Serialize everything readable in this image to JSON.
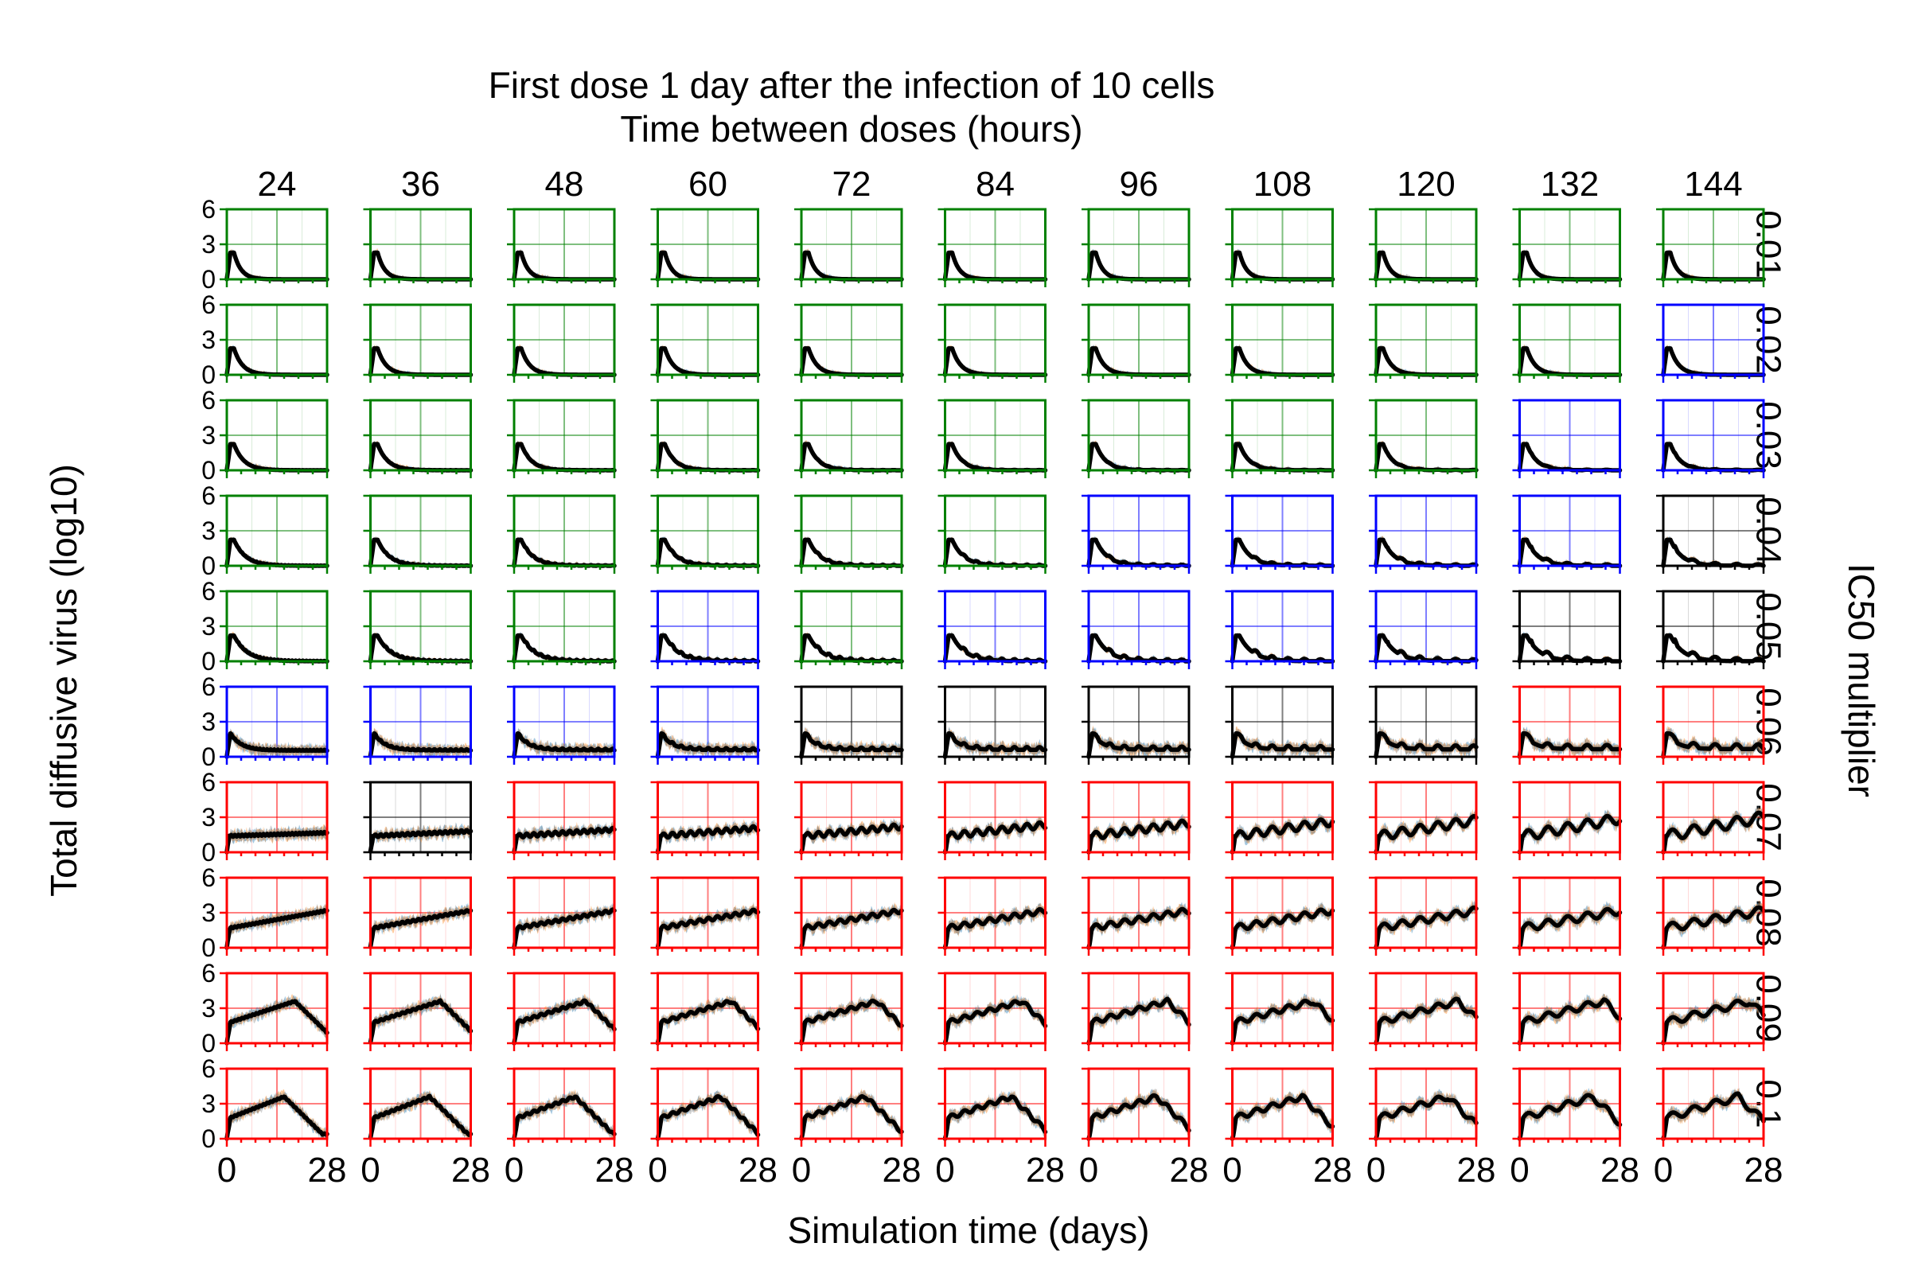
{
  "chart_data": {
    "type": "line",
    "title": "First dose 1 day after the infection of 10 cells",
    "col_header": "Time between doses (hours)",
    "xlabel": "Simulation time (days)",
    "ylabel": "Total diffusive virus (log10)",
    "right_label": "IC50 multiplier",
    "x_ticks": [
      "0",
      "28"
    ],
    "y_ticks": [
      "0",
      "3",
      "6"
    ],
    "xlim": [
      0,
      28
    ],
    "ylim": [
      0,
      6
    ],
    "intervals_hours": [
      24,
      36,
      48,
      60,
      72,
      84,
      96,
      108,
      120,
      132,
      144
    ],
    "columns": [
      "24",
      "36",
      "48",
      "60",
      "72",
      "84",
      "96",
      "108",
      "120",
      "132",
      "144"
    ],
    "rows": [
      "0.01",
      "0.02",
      "0.03",
      "0.04",
      "0.05",
      "0.06",
      "0.07",
      "0.08",
      "0.09",
      "0.1"
    ],
    "outcome_colors": {
      "G": "#008000",
      "B": "#0000ff",
      "K": "#000000",
      "R": "#ff0000"
    },
    "band_colors": [
      "#1f77b4",
      "#ff7f0e",
      "#7f7f7f"
    ],
    "line_color": "#000000",
    "outcomes": [
      "GGGGGGGGGGG",
      "GGGGGGGGGGB",
      "GGGGGGGGGBB",
      "GGGGGGBBBBK",
      "GGGBGBBBBKK",
      "BBBBKKKKKRR",
      "RKRRRRRRRRR",
      "RRRRRRRRRRR",
      "RRRRRRRRRRR",
      "RRRRRRRRRRR"
    ],
    "legend": "none"
  }
}
